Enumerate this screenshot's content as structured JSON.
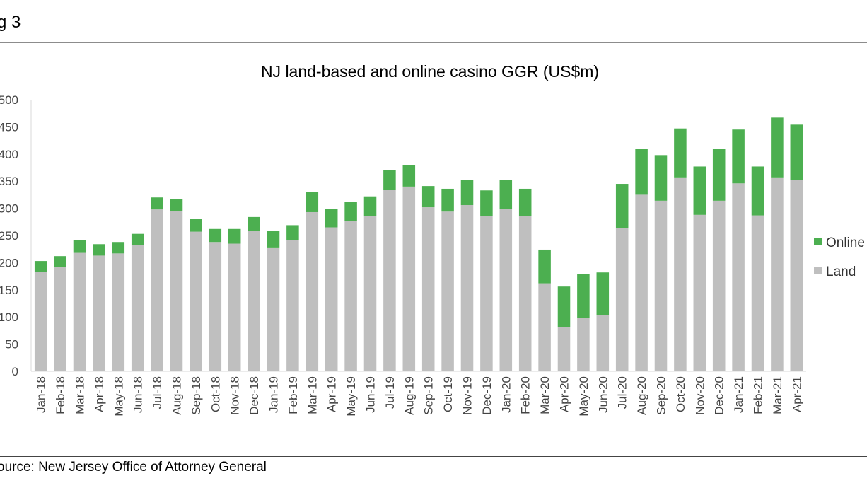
{
  "figure_label": "g 3",
  "source": "ource: New Jersey Office of Attorney General",
  "colors": {
    "land": "#bfbfbf",
    "online": "#4caf50"
  },
  "chart_data": {
    "type": "bar",
    "stacked": true,
    "title": "NJ land-based and online casino GGR (US$m)",
    "ylim": [
      0,
      500
    ],
    "y_ticks": [
      "0",
      "50",
      "100",
      "150",
      "200",
      "250",
      "300",
      "350",
      "400",
      "450",
      "500"
    ],
    "y_tick_values": [
      0,
      50,
      100,
      150,
      200,
      250,
      300,
      350,
      400,
      450,
      500
    ],
    "categories": [
      "Jan-18",
      "Feb-18",
      "Mar-18",
      "Apr-18",
      "May-18",
      "Jun-18",
      "Jul-18",
      "Aug-18",
      "Sep-18",
      "Oct-18",
      "Nov-18",
      "Dec-18",
      "Jan-19",
      "Feb-19",
      "Mar-19",
      "Apr-19",
      "May-19",
      "Jun-19",
      "Jul-19",
      "Aug-19",
      "Sep-19",
      "Oct-19",
      "Nov-19",
      "Dec-19",
      "Jan-20",
      "Feb-20",
      "Mar-20",
      "Apr-20",
      "May-20",
      "Jun-20",
      "Jul-20",
      "Aug-20",
      "Sep-20",
      "Oct-20",
      "Nov-20",
      "Dec-20",
      "Jan-21",
      "Feb-21",
      "Mar-21",
      "Apr-21"
    ],
    "series": [
      {
        "name": "Land",
        "values": [
          183,
          192,
          218,
          213,
          217,
          232,
          298,
          295,
          257,
          238,
          235,
          258,
          228,
          241,
          293,
          265,
          277,
          286,
          334,
          340,
          302,
          294,
          306,
          286,
          299,
          286,
          162,
          81,
          98,
          103,
          264,
          325,
          314,
          357,
          288,
          314,
          346,
          287,
          357,
          352
        ]
      },
      {
        "name": "Online",
        "values": [
          20,
          20,
          23,
          21,
          21,
          21,
          22,
          22,
          24,
          24,
          27,
          26,
          31,
          28,
          37,
          34,
          35,
          36,
          36,
          39,
          39,
          42,
          46,
          47,
          53,
          50,
          62,
          75,
          81,
          79,
          81,
          84,
          84,
          90,
          89,
          95,
          99,
          90,
          110,
          102
        ]
      }
    ],
    "legend": {
      "position": "right",
      "entries": [
        "Online",
        "Land"
      ]
    },
    "grid": false
  }
}
